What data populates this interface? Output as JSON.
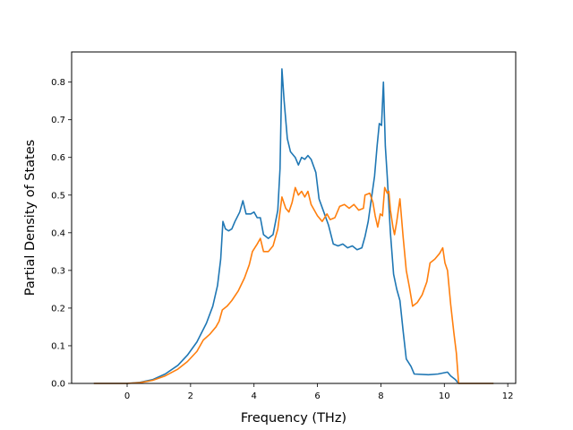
{
  "chart_data": {
    "type": "line",
    "xlabel": "Frequency (THz)",
    "ylabel": "Partial Density of States",
    "xlim": [
      -1.75,
      12.25
    ],
    "ylim": [
      0,
      0.88
    ],
    "grid": false,
    "x_ticks": [
      "0",
      "2",
      "4",
      "6",
      "8",
      "10",
      "12"
    ],
    "y_ticks": [
      "0.0",
      "0.1",
      "0.2",
      "0.3",
      "0.4",
      "0.5",
      "0.6",
      "0.7",
      "0.8"
    ],
    "series": [
      {
        "color": "#1f77b4",
        "points": [
          [
            -1.05,
            0
          ],
          [
            0,
            0
          ],
          [
            0.4,
            0.003
          ],
          [
            0.8,
            0.01
          ],
          [
            1.2,
            0.025
          ],
          [
            1.6,
            0.048
          ],
          [
            1.9,
            0.075
          ],
          [
            2.2,
            0.11
          ],
          [
            2.5,
            0.16
          ],
          [
            2.7,
            0.205
          ],
          [
            2.85,
            0.26
          ],
          [
            2.95,
            0.33
          ],
          [
            3.02,
            0.43
          ],
          [
            3.1,
            0.41
          ],
          [
            3.2,
            0.405
          ],
          [
            3.3,
            0.41
          ],
          [
            3.4,
            0.43
          ],
          [
            3.55,
            0.455
          ],
          [
            3.65,
            0.485
          ],
          [
            3.75,
            0.45
          ],
          [
            3.9,
            0.45
          ],
          [
            4.0,
            0.455
          ],
          [
            4.1,
            0.44
          ],
          [
            4.2,
            0.44
          ],
          [
            4.3,
            0.395
          ],
          [
            4.45,
            0.385
          ],
          [
            4.6,
            0.395
          ],
          [
            4.75,
            0.46
          ],
          [
            4.82,
            0.57
          ],
          [
            4.88,
            0.835
          ],
          [
            4.95,
            0.75
          ],
          [
            5.05,
            0.65
          ],
          [
            5.15,
            0.615
          ],
          [
            5.3,
            0.6
          ],
          [
            5.4,
            0.58
          ],
          [
            5.5,
            0.6
          ],
          [
            5.6,
            0.595
          ],
          [
            5.7,
            0.605
          ],
          [
            5.8,
            0.595
          ],
          [
            5.95,
            0.56
          ],
          [
            6.05,
            0.49
          ],
          [
            6.2,
            0.455
          ],
          [
            6.35,
            0.42
          ],
          [
            6.5,
            0.37
          ],
          [
            6.65,
            0.365
          ],
          [
            6.8,
            0.37
          ],
          [
            6.95,
            0.36
          ],
          [
            7.1,
            0.365
          ],
          [
            7.25,
            0.355
          ],
          [
            7.4,
            0.36
          ],
          [
            7.5,
            0.39
          ],
          [
            7.6,
            0.43
          ],
          [
            7.7,
            0.49
          ],
          [
            7.8,
            0.55
          ],
          [
            7.88,
            0.63
          ],
          [
            7.95,
            0.69
          ],
          [
            8.02,
            0.685
          ],
          [
            8.08,
            0.8
          ],
          [
            8.14,
            0.63
          ],
          [
            8.2,
            0.55
          ],
          [
            8.3,
            0.4
          ],
          [
            8.4,
            0.29
          ],
          [
            8.5,
            0.25
          ],
          [
            8.6,
            0.22
          ],
          [
            8.7,
            0.14
          ],
          [
            8.8,
            0.065
          ],
          [
            8.95,
            0.045
          ],
          [
            9.05,
            0.025
          ],
          [
            9.5,
            0.023
          ],
          [
            9.8,
            0.025
          ],
          [
            10.1,
            0.03
          ],
          [
            10.2,
            0.02
          ],
          [
            10.35,
            0.01
          ],
          [
            10.45,
            0
          ],
          [
            11.55,
            0
          ]
        ]
      },
      {
        "color": "#ff7f0e",
        "points": [
          [
            -1.05,
            0
          ],
          [
            0,
            0
          ],
          [
            0.4,
            0.002
          ],
          [
            0.8,
            0.008
          ],
          [
            1.2,
            0.02
          ],
          [
            1.6,
            0.038
          ],
          [
            1.9,
            0.058
          ],
          [
            2.2,
            0.085
          ],
          [
            2.4,
            0.115
          ],
          [
            2.6,
            0.13
          ],
          [
            2.8,
            0.15
          ],
          [
            2.9,
            0.165
          ],
          [
            3.0,
            0.195
          ],
          [
            3.15,
            0.205
          ],
          [
            3.3,
            0.22
          ],
          [
            3.5,
            0.245
          ],
          [
            3.7,
            0.28
          ],
          [
            3.85,
            0.315
          ],
          [
            3.95,
            0.35
          ],
          [
            4.1,
            0.37
          ],
          [
            4.2,
            0.385
          ],
          [
            4.3,
            0.35
          ],
          [
            4.45,
            0.35
          ],
          [
            4.6,
            0.365
          ],
          [
            4.75,
            0.41
          ],
          [
            4.88,
            0.495
          ],
          [
            5.0,
            0.465
          ],
          [
            5.1,
            0.455
          ],
          [
            5.2,
            0.48
          ],
          [
            5.3,
            0.52
          ],
          [
            5.4,
            0.5
          ],
          [
            5.5,
            0.51
          ],
          [
            5.6,
            0.495
          ],
          [
            5.7,
            0.51
          ],
          [
            5.8,
            0.475
          ],
          [
            6.0,
            0.445
          ],
          [
            6.15,
            0.43
          ],
          [
            6.3,
            0.45
          ],
          [
            6.4,
            0.435
          ],
          [
            6.55,
            0.44
          ],
          [
            6.7,
            0.47
          ],
          [
            6.85,
            0.475
          ],
          [
            7.0,
            0.465
          ],
          [
            7.15,
            0.475
          ],
          [
            7.3,
            0.46
          ],
          [
            7.45,
            0.465
          ],
          [
            7.5,
            0.5
          ],
          [
            7.65,
            0.505
          ],
          [
            7.75,
            0.48
          ],
          [
            7.82,
            0.445
          ],
          [
            7.9,
            0.415
          ],
          [
            7.98,
            0.45
          ],
          [
            8.05,
            0.445
          ],
          [
            8.12,
            0.52
          ],
          [
            8.2,
            0.505
          ],
          [
            8.25,
            0.51
          ],
          [
            8.3,
            0.46
          ],
          [
            8.38,
            0.415
          ],
          [
            8.43,
            0.395
          ],
          [
            8.5,
            0.43
          ],
          [
            8.6,
            0.49
          ],
          [
            8.7,
            0.39
          ],
          [
            8.8,
            0.3
          ],
          [
            8.9,
            0.255
          ],
          [
            9.0,
            0.205
          ],
          [
            9.15,
            0.215
          ],
          [
            9.3,
            0.235
          ],
          [
            9.45,
            0.27
          ],
          [
            9.55,
            0.32
          ],
          [
            9.7,
            0.33
          ],
          [
            9.85,
            0.345
          ],
          [
            9.95,
            0.36
          ],
          [
            10.02,
            0.32
          ],
          [
            10.1,
            0.3
          ],
          [
            10.2,
            0.21
          ],
          [
            10.3,
            0.135
          ],
          [
            10.38,
            0.08
          ],
          [
            10.45,
            0
          ],
          [
            11.55,
            0
          ]
        ]
      }
    ]
  }
}
